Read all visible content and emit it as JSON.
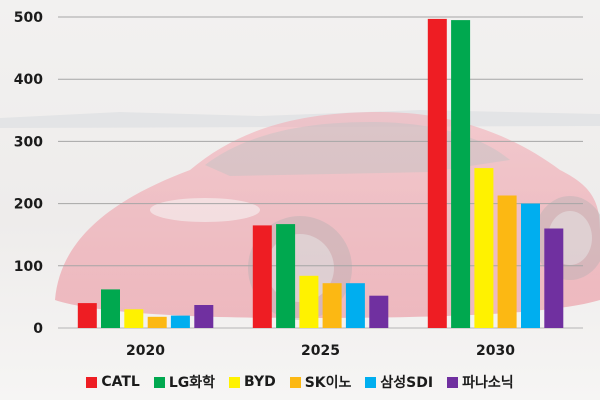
{
  "chart_data": {
    "type": "bar",
    "categories": [
      "2020",
      "2025",
      "2030"
    ],
    "series": [
      {
        "name": "CATL",
        "color": "#ee1d23",
        "values": [
          40,
          165,
          497
        ]
      },
      {
        "name": "LG화학",
        "color": "#00a84f",
        "values": [
          62,
          167,
          495
        ]
      },
      {
        "name": "BYD",
        "color": "#fff200",
        "values": [
          30,
          84,
          257
        ]
      },
      {
        "name": "SK이노",
        "color": "#fcb813",
        "values": [
          18,
          72,
          213
        ]
      },
      {
        "name": "삼성SDI",
        "color": "#00aeef",
        "values": [
          20,
          72,
          200
        ]
      },
      {
        "name": "파나소닉",
        "color": "#7030a0",
        "values": [
          37,
          52,
          160
        ]
      }
    ],
    "yticks": [
      0,
      100,
      200,
      300,
      400,
      500
    ],
    "ylim": [
      0,
      500
    ],
    "grid": true,
    "legend_position": "bottom",
    "title": "",
    "xlabel": "",
    "ylabel": ""
  }
}
